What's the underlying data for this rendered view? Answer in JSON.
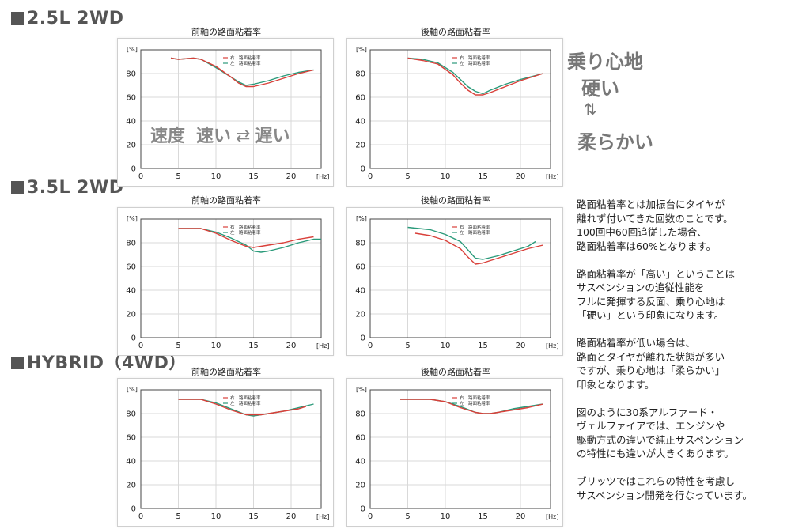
{
  "sections": [
    {
      "label": "2.5L 2WD"
    },
    {
      "label": "3.5L 2WD"
    },
    {
      "label": "HYBRID（4WD）"
    }
  ],
  "speed_note": {
    "prefix": "速度",
    "fast": "速い",
    "arrow": "⇄",
    "slow": "遅い"
  },
  "ride": {
    "title": "乗り心地",
    "hard": "硬い",
    "arrow": "⇅",
    "soft": "柔らかい"
  },
  "description": [
    [
      "路面粘着率とは加振台にタイヤが",
      "離れず付いてきた回数のことです。",
      "100回中60回追従した場合、",
      "路面粘着率は60%となります。"
    ],
    [
      "路面粘着率が「高い」ということは",
      "サスペンションの追従性能を",
      "フルに発揮する反面、乗り心地は",
      "「硬い」という印象になります。"
    ],
    [
      "路面粘着率が低い場合は、",
      "路面とタイヤが離れた状態が多い",
      "ですが、乗り心地は「柔らかい」",
      "印象となります。"
    ],
    [
      "図のように30系アルファード・",
      "ヴェルファイアでは、エンジンや",
      "駆動方式の違いで純正サスペンション",
      "の特性にも違いが大きくあります。"
    ],
    [
      "ブリッツではこれらの特性を考慮し",
      "サスペンション開発を行なっています。"
    ]
  ],
  "colors": {
    "right": "#d9403a",
    "left": "#2a9a7a"
  },
  "chart_data": [
    {
      "type": "line",
      "title": "前軸の路面粘着率",
      "ylabel": "[%]",
      "xlabel": "[Hz]",
      "xlim": [
        0,
        24
      ],
      "ylim": [
        0,
        100
      ],
      "xticks": [
        0,
        5,
        10,
        15,
        20
      ],
      "yticks": [
        0,
        20,
        40,
        60,
        80
      ],
      "legend": [
        "右　路面粘着率",
        "左　路面粘着率"
      ],
      "series": [
        {
          "name": "右　路面粘着率",
          "x": [
            4,
            5,
            7,
            8,
            10,
            12,
            13,
            14,
            15,
            17,
            19,
            21,
            23
          ],
          "y": [
            93,
            92,
            93,
            92,
            86,
            77,
            72,
            69,
            69,
            72,
            76,
            80,
            83
          ]
        },
        {
          "name": "左　路面粘着率",
          "x": [
            4,
            5,
            7,
            8,
            10,
            12,
            13,
            14,
            15,
            17,
            19,
            21,
            23
          ],
          "y": [
            93,
            92,
            93,
            92,
            85,
            77,
            73,
            70,
            71,
            74,
            78,
            81,
            83
          ]
        }
      ]
    },
    {
      "type": "line",
      "title": "後軸の路面粘着率",
      "ylabel": "[%]",
      "xlabel": "[Hz]",
      "xlim": [
        0,
        24
      ],
      "ylim": [
        0,
        100
      ],
      "xticks": [
        0,
        5,
        10,
        15,
        20
      ],
      "yticks": [
        0,
        20,
        40,
        60,
        80
      ],
      "legend": [
        "右　路面粘着率",
        "左　路面粘着率"
      ],
      "series": [
        {
          "name": "右　路面粘着率",
          "x": [
            5,
            7,
            9,
            11,
            12,
            13,
            14,
            15,
            16,
            18,
            20,
            23
          ],
          "y": [
            93,
            91,
            88,
            79,
            72,
            66,
            62,
            62,
            64,
            69,
            74,
            80
          ]
        },
        {
          "name": "左　路面粘着率",
          "x": [
            5,
            7,
            9,
            11,
            12,
            13,
            14,
            15,
            16,
            18,
            20,
            23
          ],
          "y": [
            93,
            92,
            89,
            81,
            75,
            69,
            65,
            63,
            66,
            71,
            75,
            80
          ]
        }
      ]
    },
    {
      "type": "line",
      "title": "前軸の路面粘着率",
      "ylabel": "[%]",
      "xlabel": "[Hz]",
      "xlim": [
        0,
        24
      ],
      "ylim": [
        0,
        100
      ],
      "xticks": [
        0,
        5,
        10,
        15,
        20
      ],
      "yticks": [
        0,
        20,
        40,
        60,
        80
      ],
      "legend": [
        "右　路面粘着率",
        "左　路面粘着率"
      ],
      "series": [
        {
          "name": "右　路面粘着率",
          "x": [
            5,
            7,
            8,
            10,
            12,
            14,
            15,
            16,
            17,
            19,
            21,
            23
          ],
          "y": [
            92,
            92,
            92,
            88,
            82,
            77,
            76,
            77,
            78,
            80,
            83,
            85
          ]
        },
        {
          "name": "左　路面粘着率",
          "x": [
            5,
            7,
            8,
            10,
            12,
            14,
            15,
            16,
            17,
            19,
            21,
            23,
            24
          ],
          "y": [
            92,
            92,
            92,
            89,
            84,
            78,
            73,
            72,
            73,
            76,
            80,
            83,
            83
          ]
        }
      ]
    },
    {
      "type": "line",
      "title": "後軸の路面粘着率",
      "ylabel": "[%]",
      "xlabel": "[Hz]",
      "xlim": [
        0,
        24
      ],
      "ylim": [
        0,
        100
      ],
      "xticks": [
        0,
        5,
        10,
        15,
        20
      ],
      "yticks": [
        0,
        20,
        40,
        60,
        80
      ],
      "legend": [
        "右　路面粘着率",
        "左　路面粘着率"
      ],
      "series": [
        {
          "name": "右　路面粘着率",
          "x": [
            6,
            8,
            10,
            12,
            13,
            14,
            15,
            17,
            19,
            21,
            23
          ],
          "y": [
            88,
            86,
            82,
            75,
            68,
            62,
            63,
            67,
            71,
            75,
            78
          ]
        },
        {
          "name": "左　路面粘着率",
          "x": [
            5,
            8,
            10,
            12,
            13,
            14,
            15,
            17,
            19,
            21,
            22
          ],
          "y": [
            93,
            91,
            87,
            81,
            74,
            67,
            66,
            69,
            73,
            77,
            81
          ]
        }
      ]
    },
    {
      "type": "line",
      "title": "前軸の路面粘着率",
      "ylabel": "[%]",
      "xlabel": "[Hz]",
      "xlim": [
        0,
        24
      ],
      "ylim": [
        0,
        100
      ],
      "xticks": [
        0,
        5,
        10,
        15,
        20
      ],
      "yticks": [
        0,
        20,
        40,
        60,
        80
      ],
      "legend": [
        "右　路面粘着率",
        "左　路面粘着率"
      ],
      "series": [
        {
          "name": "右　路面粘着率",
          "x": [
            5,
            7,
            8,
            10,
            12,
            14,
            15,
            16,
            17,
            19,
            21,
            22
          ],
          "y": [
            92,
            92,
            92,
            88,
            83,
            79,
            79,
            79,
            80,
            82,
            84,
            86
          ]
        },
        {
          "name": "左　路面粘着率",
          "x": [
            5,
            7,
            8,
            10,
            12,
            14,
            15,
            16,
            17,
            19,
            21,
            23
          ],
          "y": [
            92,
            92,
            92,
            89,
            84,
            79,
            78,
            79,
            80,
            82,
            85,
            88
          ]
        }
      ]
    },
    {
      "type": "line",
      "title": "後軸の路面粘着率",
      "ylabel": "[%]",
      "xlabel": "[Hz]",
      "xlim": [
        0,
        24
      ],
      "ylim": [
        0,
        100
      ],
      "xticks": [
        0,
        5,
        10,
        15,
        20
      ],
      "yticks": [
        0,
        20,
        40,
        60,
        80
      ],
      "legend": [
        "右　路面粘着率",
        "左　路面粘着率"
      ],
      "series": [
        {
          "name": "右　路面粘着率",
          "x": [
            4,
            6,
            8,
            10,
            12,
            14,
            15,
            16,
            17,
            19,
            21,
            23
          ],
          "y": [
            92,
            92,
            92,
            90,
            85,
            81,
            80,
            80,
            81,
            83,
            85,
            88
          ]
        },
        {
          "name": "左　路面粘着率",
          "x": [
            4,
            6,
            8,
            10,
            12,
            14,
            15,
            16,
            17,
            19,
            21,
            23
          ],
          "y": [
            92,
            92,
            92,
            90,
            86,
            81,
            80,
            80,
            81,
            84,
            86,
            88
          ]
        }
      ]
    }
  ]
}
